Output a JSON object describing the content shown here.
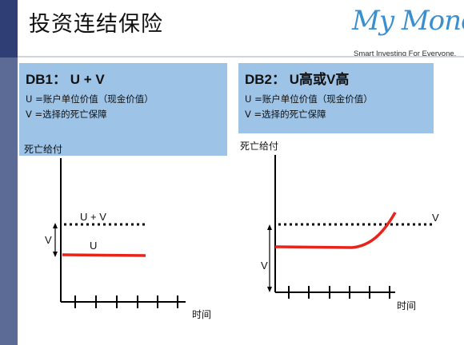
{
  "title": "投资连结保险",
  "logo": {
    "name": "My Money",
    "tagline": "Smart Investing For Everyone."
  },
  "db1": {
    "heading": "DB1： U + V",
    "line_u": "U =账户单位价值（现金价值）",
    "line_v": "V =选择的死亡保障"
  },
  "db2": {
    "heading": "DB2： U高或V高",
    "line_u": "U =账户单位价值（现金价值）",
    "line_v": "V =选择的死亡保障"
  },
  "chart1": {
    "ylabel": "死亡给付",
    "xlabel": "时间",
    "label_uv": "U + V",
    "label_v": "V",
    "label_u": "U"
  },
  "chart2": {
    "ylabel": "死亡给付",
    "xlabel": "时间",
    "label_v_line": "V",
    "label_v_gap": "V"
  },
  "colors": {
    "u_line": "#e8231c",
    "box_fill": "#9dc3e6",
    "sidebar": "#5c6b95",
    "logo": "#3a8fd0"
  }
}
